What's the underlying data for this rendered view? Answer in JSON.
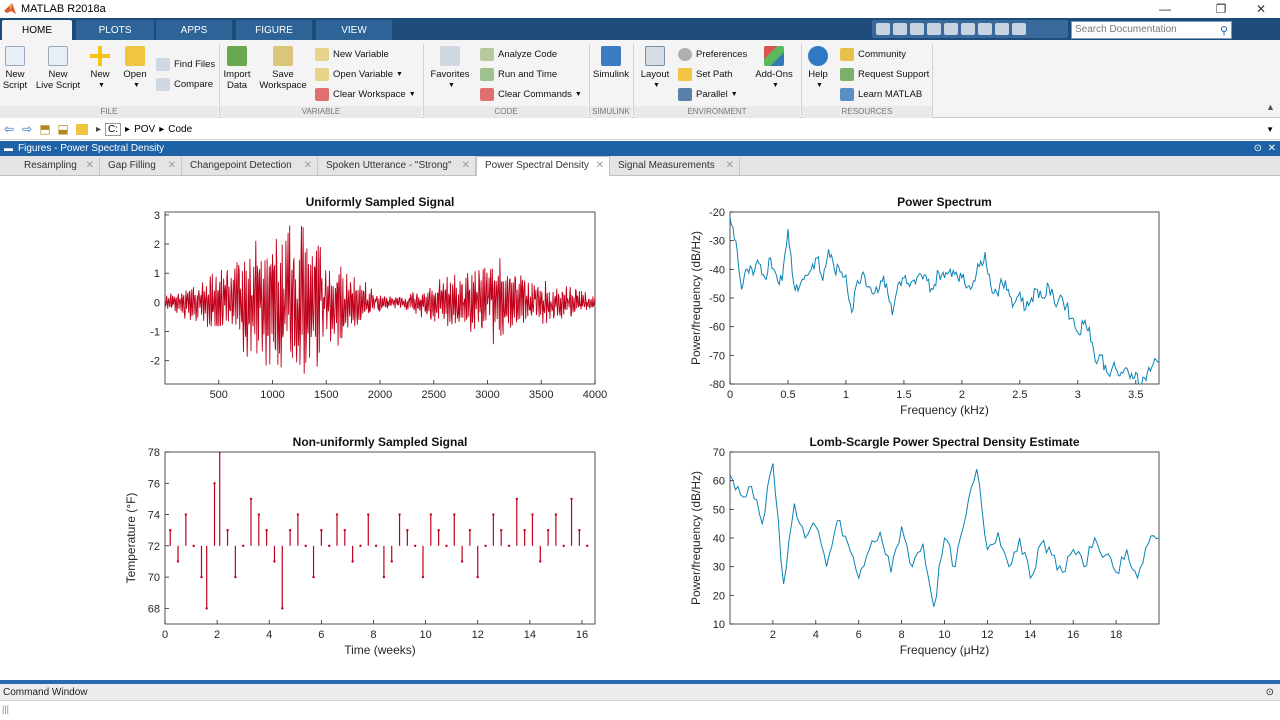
{
  "window": {
    "title": "MATLAB R2018a",
    "minimize": "—",
    "restore": "❐",
    "close": "✕"
  },
  "ribbon_tabs": [
    "HOME",
    "PLOTS",
    "APPS",
    "FIGURE",
    "VIEW"
  ],
  "search": {
    "placeholder": "Search Documentation"
  },
  "ribbon": {
    "new_script": [
      "New",
      "Script"
    ],
    "new_live_script": [
      "New",
      "Live Script"
    ],
    "new": "New",
    "open": "Open",
    "find_files": "Find Files",
    "compare": "Compare",
    "import_data": [
      "Import",
      "Data"
    ],
    "save_workspace": [
      "Save",
      "Workspace"
    ],
    "new_variable": "New Variable",
    "open_variable": "Open Variable",
    "clear_workspace": "Clear Workspace",
    "favorites": "Favorites",
    "analyze_code": "Analyze Code",
    "run_and_time": "Run and Time",
    "clear_commands": "Clear Commands",
    "simulink": "Simulink",
    "layout": "Layout",
    "preferences": "Preferences",
    "set_path": "Set Path",
    "parallel": "Parallel",
    "add_ons": "Add-Ons",
    "help": "Help",
    "community": "Community",
    "request_support": "Request Support",
    "learn_matlab": "Learn MATLAB",
    "groups": [
      "FILE",
      "VARIABLE",
      "CODE",
      "SIMULINK",
      "ENVIRONMENT",
      "RESOURCES"
    ]
  },
  "address": {
    "drive": "C:",
    "sep1": "▸",
    "folder1": "POV",
    "sep2": "▸",
    "folder2": "Code"
  },
  "figures_panel": {
    "title": "Figures - Power Spectral Density"
  },
  "figure_tabs": [
    {
      "label": "Resampling",
      "active": false
    },
    {
      "label": "Gap Filling",
      "active": false
    },
    {
      "label": "Changepoint Detection",
      "active": false
    },
    {
      "label": "Spoken Utterance - \"Strong\"",
      "active": false
    },
    {
      "label": "Power Spectral Density",
      "active": true
    },
    {
      "label": "Signal Measurements",
      "active": false
    }
  ],
  "command_window": {
    "title": "Command Window"
  },
  "colors": {
    "red": "#c0001a",
    "blue": "#0b83b5",
    "ribbon_dark": "#1e4c7a",
    "panel_blue": "#1d62a6"
  },
  "chart_data": [
    {
      "type": "line",
      "title": "Uniformly Sampled Signal",
      "xlabel": "",
      "ylabel": "",
      "xlim": [
        0,
        4000
      ],
      "ylim": [
        -2.8,
        3.1
      ],
      "xticks": [
        500,
        1000,
        1500,
        2000,
        2500,
        3000,
        3500,
        4000
      ],
      "yticks": [
        -2,
        -1,
        0,
        1,
        2,
        3
      ],
      "color": "#c0001a",
      "envelope": [
        [
          0,
          0.25
        ],
        [
          200,
          0.6
        ],
        [
          400,
          0.9
        ],
        [
          600,
          1.6
        ],
        [
          900,
          2.4
        ],
        [
          1150,
          2.6
        ],
        [
          1250,
          3.0
        ],
        [
          1400,
          2.6
        ],
        [
          1600,
          1.6
        ],
        [
          1800,
          0.9
        ],
        [
          2000,
          0.3
        ],
        [
          2200,
          0.2
        ],
        [
          2400,
          0.6
        ],
        [
          2600,
          0.9
        ],
        [
          2750,
          1.0
        ],
        [
          2900,
          1.2
        ],
        [
          3050,
          1.7
        ],
        [
          3200,
          1.3
        ],
        [
          3400,
          1.0
        ],
        [
          3600,
          0.8
        ],
        [
          3800,
          0.5
        ],
        [
          4000,
          0.25
        ]
      ]
    },
    {
      "type": "line",
      "title": "Power Spectrum",
      "xlabel": "Frequency (kHz)",
      "ylabel": "Power/frequency (dB/Hz)",
      "xlim": [
        0,
        3.7
      ],
      "ylim": [
        -80,
        -20
      ],
      "xticks": [
        0,
        0.5,
        1,
        1.5,
        2,
        2.5,
        3,
        3.5
      ],
      "yticks": [
        -80,
        -70,
        -60,
        -50,
        -40,
        -30,
        -20
      ],
      "color": "#0b83b5",
      "x": [
        0,
        0.05,
        0.1,
        0.15,
        0.2,
        0.25,
        0.3,
        0.35,
        0.4,
        0.45,
        0.5,
        0.55,
        0.6,
        0.65,
        0.7,
        0.75,
        0.8,
        0.85,
        0.9,
        0.95,
        1.0,
        1.05,
        1.1,
        1.15,
        1.2,
        1.25,
        1.3,
        1.35,
        1.4,
        1.45,
        1.5,
        1.55,
        1.6,
        1.65,
        1.7,
        1.75,
        1.8,
        1.85,
        1.9,
        1.95,
        2.0,
        2.05,
        2.1,
        2.15,
        2.2,
        2.25,
        2.3,
        2.35,
        2.4,
        2.45,
        2.5,
        2.55,
        2.6,
        2.65,
        2.7,
        2.75,
        2.8,
        2.85,
        2.9,
        2.95,
        3.0,
        3.05,
        3.1,
        3.15,
        3.2,
        3.25,
        3.3,
        3.35,
        3.4,
        3.45,
        3.5,
        3.55,
        3.6,
        3.65,
        3.7
      ],
      "y": [
        -22,
        -30,
        -47,
        -40,
        -42,
        -38,
        -43,
        -36,
        -42,
        -44,
        -26,
        -45,
        -46,
        -42,
        -40,
        -36,
        -44,
        -33,
        -40,
        -41,
        -42,
        -55,
        -44,
        -41,
        -46,
        -48,
        -44,
        -45,
        -56,
        -45,
        -43,
        -46,
        -45,
        -42,
        -44,
        -47,
        -41,
        -43,
        -40,
        -41,
        -43,
        -46,
        -44,
        -39,
        -34,
        -46,
        -48,
        -45,
        -47,
        -52,
        -48,
        -54,
        -50,
        -47,
        -50,
        -46,
        -52,
        -49,
        -53,
        -57,
        -62,
        -59,
        -60,
        -72,
        -70,
        -76,
        -74,
        -77,
        -75,
        -78,
        -76,
        -80,
        -76,
        -73,
        -72
      ]
    },
    {
      "type": "scatter",
      "title": "Non-uniformly Sampled Signal",
      "xlabel": "Time (weeks)",
      "ylabel": "Temperature (°F)",
      "xlim": [
        0,
        16.5
      ],
      "ylim": [
        67,
        78
      ],
      "xticks": [
        0,
        2,
        4,
        6,
        8,
        10,
        12,
        14,
        16
      ],
      "yticks": [
        68,
        70,
        72,
        74,
        76,
        78
      ],
      "color": "#c0001a",
      "x": [
        0.2,
        0.5,
        0.8,
        1.1,
        1.4,
        1.6,
        1.9,
        2.1,
        2.4,
        2.7,
        3.0,
        3.3,
        3.6,
        3.9,
        4.2,
        4.5,
        4.8,
        5.1,
        5.4,
        5.7,
        6.0,
        6.3,
        6.6,
        6.9,
        7.2,
        7.5,
        7.8,
        8.1,
        8.4,
        8.7,
        9.0,
        9.3,
        9.6,
        9.9,
        10.2,
        10.5,
        10.8,
        11.1,
        11.4,
        11.7,
        12.0,
        12.3,
        12.6,
        12.9,
        13.2,
        13.5,
        13.8,
        14.1,
        14.4,
        14.7,
        15.0,
        15.3,
        15.6,
        15.9,
        16.2
      ],
      "y": [
        73,
        71,
        74,
        72,
        70,
        68,
        76,
        78,
        73,
        70,
        72,
        75,
        74,
        73,
        71,
        68,
        73,
        74,
        72,
        70,
        73,
        72,
        74,
        73,
        71,
        72,
        74,
        72,
        70,
        71,
        74,
        73,
        72,
        70,
        74,
        73,
        72,
        74,
        71,
        73,
        70,
        72,
        74,
        73,
        72,
        75,
        73,
        74,
        71,
        73,
        74,
        72,
        75,
        73,
        72
      ]
    },
    {
      "type": "line",
      "title": "Lomb-Scargle Power Spectral Density Estimate",
      "xlabel": "Frequency (μHz)",
      "ylabel": "Power/frequency (dB/Hz)",
      "xlim": [
        0,
        20
      ],
      "ylim": [
        10,
        70
      ],
      "xticks": [
        2,
        4,
        6,
        8,
        10,
        12,
        14,
        16,
        18
      ],
      "yticks": [
        10,
        20,
        30,
        40,
        50,
        60,
        70
      ],
      "color": "#0b83b5",
      "x": [
        0,
        0.5,
        1.0,
        1.5,
        2.0,
        2.5,
        3.0,
        3.5,
        4.0,
        4.5,
        5.0,
        5.5,
        6.0,
        6.5,
        7.0,
        7.5,
        8.0,
        8.5,
        9.0,
        9.5,
        10.0,
        10.5,
        11.0,
        11.5,
        12.0,
        12.5,
        13.0,
        13.5,
        14.0,
        14.5,
        15.0,
        15.5,
        16.0,
        16.5,
        17.0,
        17.5,
        18.0,
        18.5,
        19.0,
        19.5,
        20.0
      ],
      "y": [
        62,
        55,
        58,
        45,
        66,
        24,
        52,
        40,
        44,
        30,
        46,
        38,
        26,
        36,
        42,
        28,
        44,
        30,
        38,
        16,
        40,
        30,
        48,
        64,
        36,
        42,
        30,
        40,
        26,
        38,
        34,
        28,
        36,
        30,
        40,
        34,
        28,
        36,
        26,
        38,
        40
      ]
    }
  ]
}
